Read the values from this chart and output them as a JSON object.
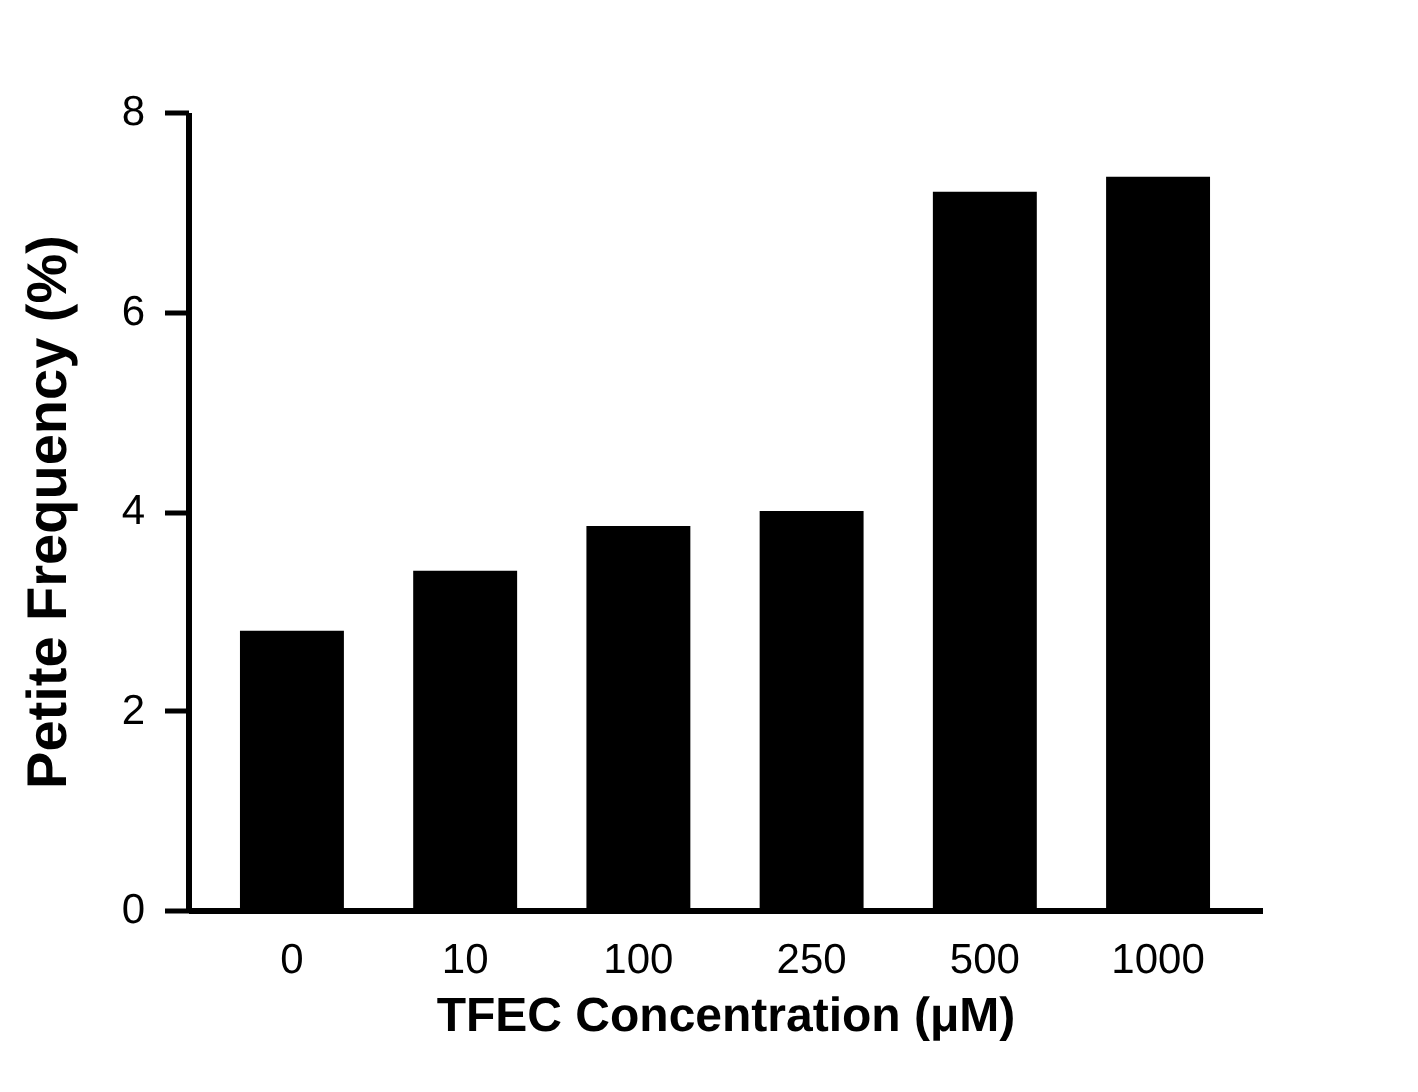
{
  "chart_data": {
    "type": "bar",
    "xlabel": "TFEC Concentration (μM)",
    "ylabel": "Petite Frequency (%)",
    "categories": [
      "0",
      "10",
      "100",
      "250",
      "500",
      "1000"
    ],
    "values": [
      2.8,
      3.4,
      3.85,
      4.0,
      7.2,
      7.35
    ],
    "color": "#000000",
    "ylim": [
      0,
      8
    ],
    "yticks": [
      0,
      2,
      4,
      6,
      8
    ],
    "grid": false
  }
}
